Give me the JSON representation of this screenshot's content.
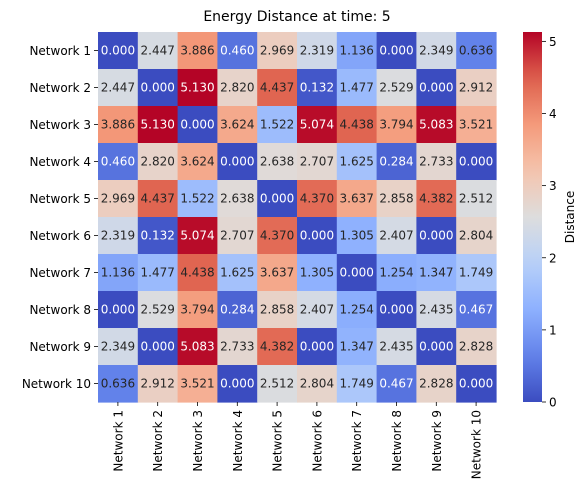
{
  "chart_data": {
    "type": "heatmap",
    "title": "Energy Distance at time: 5",
    "rows": [
      "Network 1",
      "Network 2",
      "Network 3",
      "Network 4",
      "Network 5",
      "Network 6",
      "Network 7",
      "Network 8",
      "Network 9",
      "Network 10"
    ],
    "cols": [
      "Network 1",
      "Network 2",
      "Network 3",
      "Network 4",
      "Network 5",
      "Network 6",
      "Network 7",
      "Network 8",
      "Network 9",
      "Network 10"
    ],
    "values": [
      [
        0.0,
        2.447,
        3.886,
        0.46,
        2.969,
        2.319,
        1.136,
        0.0,
        2.349,
        0.636
      ],
      [
        2.447,
        0.0,
        5.13,
        2.82,
        4.437,
        0.132,
        1.477,
        2.529,
        0.0,
        2.912
      ],
      [
        3.886,
        5.13,
        0.0,
        3.624,
        1.522,
        5.074,
        4.438,
        3.794,
        5.083,
        3.521
      ],
      [
        0.46,
        2.82,
        3.624,
        0.0,
        2.638,
        2.707,
        1.625,
        0.284,
        2.733,
        0.0
      ],
      [
        2.969,
        4.437,
        1.522,
        2.638,
        0.0,
        4.37,
        3.637,
        2.858,
        4.382,
        2.512
      ],
      [
        2.319,
        0.132,
        5.074,
        2.707,
        4.37,
        0.0,
        1.305,
        2.407,
        0.0,
        2.804
      ],
      [
        1.136,
        1.477,
        4.438,
        1.625,
        3.637,
        1.305,
        0.0,
        1.254,
        1.347,
        1.749
      ],
      [
        0.0,
        2.529,
        3.794,
        0.284,
        2.858,
        2.407,
        1.254,
        0.0,
        2.435,
        0.467
      ],
      [
        2.349,
        0.0,
        5.083,
        2.733,
        4.382,
        0.0,
        1.347,
        2.435,
        0.0,
        2.828
      ],
      [
        0.636,
        2.912,
        3.521,
        0.0,
        2.512,
        2.804,
        1.749,
        0.467,
        2.828,
        0.0
      ]
    ],
    "value_format": "3 decimals",
    "colormap": "coolwarm",
    "vmin": 0,
    "vmax": 5.13,
    "colorbar": {
      "label": "Distance",
      "ticks": [
        0,
        1,
        2,
        3,
        4,
        5
      ]
    }
  }
}
